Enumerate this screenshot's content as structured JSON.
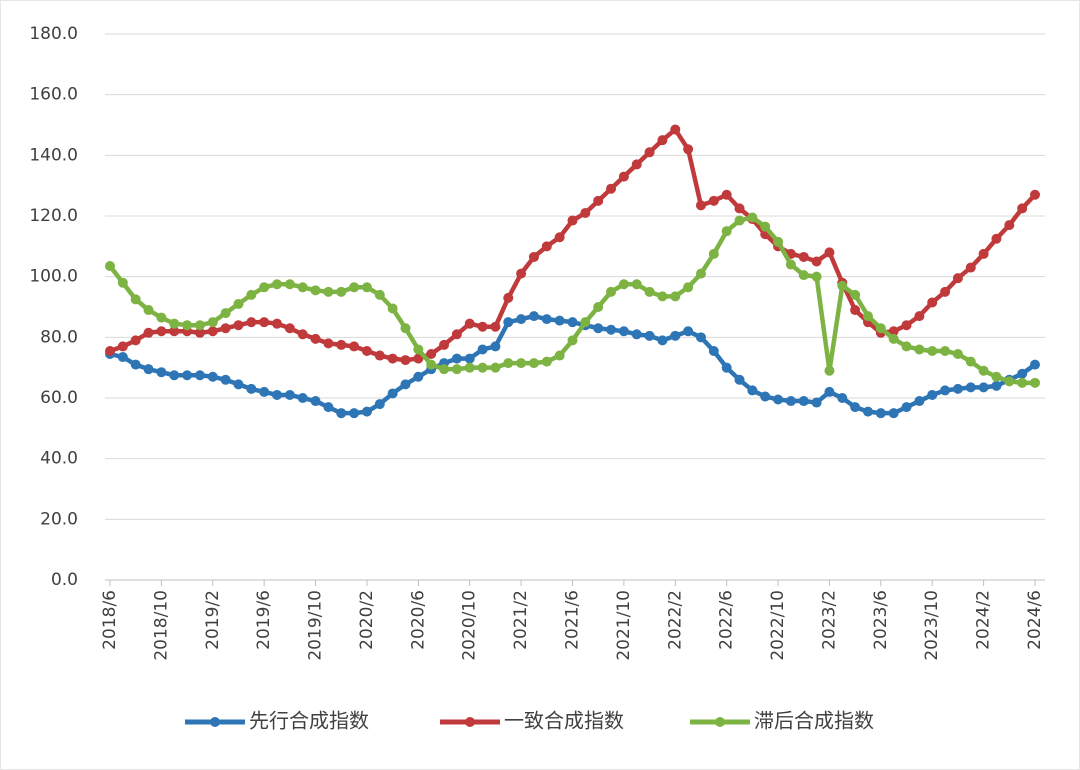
{
  "chart_data": {
    "type": "line",
    "categories": [
      "2018/6",
      null,
      null,
      null,
      "2018/10",
      null,
      null,
      null,
      "2019/2",
      null,
      null,
      null,
      "2019/6",
      null,
      null,
      null,
      "2019/10",
      null,
      null,
      null,
      "2020/2",
      null,
      null,
      null,
      "2020/6",
      null,
      null,
      null,
      "2020/10",
      null,
      null,
      null,
      "2021/2",
      null,
      null,
      null,
      "2021/6",
      null,
      null,
      null,
      "2021/10",
      null,
      null,
      null,
      "2022/2",
      null,
      null,
      null,
      "2022/6",
      null,
      null,
      null,
      "2022/10",
      null,
      null,
      null,
      "2023/2",
      null,
      null,
      null,
      "2023/6",
      null,
      null,
      null,
      "2023/10",
      null,
      null,
      null,
      "2024/2",
      null,
      null,
      null,
      "2024/6"
    ],
    "series": [
      {
        "name": "先行合成指数",
        "color": "#2e75b6",
        "values": [
          74.5,
          73.5,
          71,
          69.5,
          68.5,
          67.5,
          67.5,
          67.5,
          67,
          66,
          64.5,
          63,
          62,
          61,
          61,
          60,
          59,
          57,
          55,
          55,
          55.5,
          58,
          61.5,
          64.5,
          67,
          69.5,
          71.5,
          73,
          73,
          76,
          77,
          85,
          86,
          87,
          86,
          85.5,
          85,
          84,
          83,
          82.5,
          82,
          81,
          80.5,
          79,
          80.5,
          82,
          80,
          75.5,
          70,
          66,
          62.5,
          60.5,
          59.5,
          59,
          59,
          58.5,
          62,
          60,
          57,
          55.5,
          55,
          55,
          57,
          59,
          61,
          62.5,
          63,
          63.5,
          63.5,
          64,
          66,
          68,
          71
        ]
      },
      {
        "name": "一致合成指数",
        "color": "#c0393b",
        "values": [
          75.5,
          77,
          79,
          81.5,
          82,
          82,
          82,
          81.5,
          82,
          83,
          84,
          85,
          85,
          84.5,
          83,
          81,
          79.5,
          78,
          77.5,
          77,
          75.5,
          74,
          73,
          72.5,
          73,
          74.5,
          77.5,
          81,
          84.5,
          83.5,
          83.5,
          93,
          101,
          106.5,
          110,
          113,
          118.5,
          121,
          125,
          129,
          133,
          137,
          141,
          145,
          148.5,
          142,
          123.5,
          125,
          127,
          122.5,
          119,
          114,
          110,
          107.5,
          106.5,
          105,
          108,
          98,
          89,
          85,
          81.5,
          82,
          84,
          87,
          91.5,
          95,
          99.5,
          103,
          107.5,
          112.5,
          117,
          122.5,
          127
        ]
      },
      {
        "name": "滞后合成指数",
        "color": "#7cb342",
        "values": [
          103.5,
          98,
          92.5,
          89,
          86.5,
          84.5,
          84,
          84,
          85,
          88,
          91,
          94,
          96.5,
          97.5,
          97.5,
          96.5,
          95.5,
          95,
          95,
          96.5,
          96.5,
          94,
          89.5,
          83,
          76,
          71,
          69.5,
          69.5,
          70,
          70,
          70,
          71.5,
          71.5,
          71.5,
          72,
          74,
          79,
          85,
          90,
          95,
          97.5,
          97.5,
          95,
          93.5,
          93.5,
          96.5,
          101,
          107.5,
          115,
          118.5,
          119.5,
          116.5,
          111.5,
          104,
          100.5,
          100,
          69,
          97,
          94,
          87,
          83,
          79.5,
          77,
          76,
          75.5,
          75.5,
          74.5,
          72,
          69,
          67,
          65.5,
          65,
          65
        ]
      }
    ],
    "ylim": [
      0,
      180
    ],
    "yticks": [
      {
        "value": 0,
        "label": "0.0"
      },
      {
        "value": 20,
        "label": "20.0"
      },
      {
        "value": 40,
        "label": "40.0"
      },
      {
        "value": 60,
        "label": "60.0"
      },
      {
        "value": 80,
        "label": "80.0"
      },
      {
        "value": 100,
        "label": "100.0"
      },
      {
        "value": 120,
        "label": "120.0"
      },
      {
        "value": 140,
        "label": "140.0"
      },
      {
        "value": 160,
        "label": "160.0"
      },
      {
        "value": 180,
        "label": "180.0"
      }
    ],
    "grid": true,
    "legend": "bottom"
  }
}
